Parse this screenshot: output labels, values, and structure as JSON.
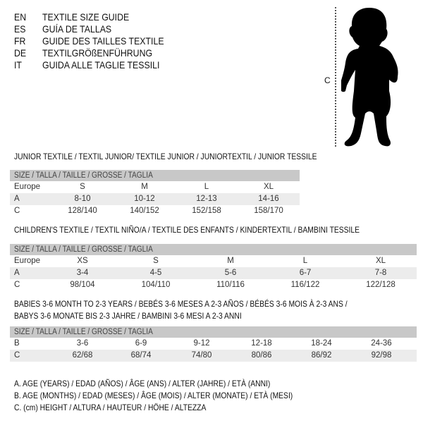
{
  "languages": [
    {
      "code": "EN",
      "text": "TEXTILE SIZE GUIDE"
    },
    {
      "code": "ES",
      "text": "GUÍA DE TALLAS"
    },
    {
      "code": "FR",
      "text": "GUIDE DES TAILLES TEXTILE"
    },
    {
      "code": "DE",
      "text": "TEXTILGRÖßENFÜHRUNG"
    },
    {
      "code": "IT",
      "text": "GUIDA ALLE TAGLIE TESSILI"
    }
  ],
  "figure": {
    "label": "C"
  },
  "tables": [
    {
      "title": [
        "JUNIOR TEXTILE / TEXTIL JUNIOR/ TEXTILE JUNIOR / JUNIORTEXTIL / JUNIOR TESSILE"
      ],
      "header": "SIZE / TALLA / TAILLE / GRÖSSE / TAGLIA",
      "rows": [
        {
          "label": "Europe",
          "cells": [
            "S",
            "M",
            "L",
            "XL"
          ]
        },
        {
          "label": "A",
          "cells": [
            "8-10",
            "10-12",
            "12-13",
            "14-16"
          ]
        },
        {
          "label": "C",
          "cells": [
            "128/140",
            "140/152",
            "152/158",
            "158/170"
          ]
        }
      ]
    },
    {
      "title": [
        "CHILDREN'S TEXTILE / TEXTIL NIÑO/A / TEXTILE DES ENFANTS / KINDERTEXTIL / BAMBINI TESSILE"
      ],
      "header": "SIZE / TALLA / TAILLE / GRÖSSE / TAGLIA",
      "rows": [
        {
          "label": "Europe",
          "cells": [
            "XS",
            "S",
            "M",
            "L",
            "XL"
          ]
        },
        {
          "label": "A",
          "cells": [
            "3-4",
            "4-5",
            "5-6",
            "6-7",
            "7-8"
          ]
        },
        {
          "label": "C",
          "cells": [
            "98/104",
            "104/110",
            "110/116",
            "116/122",
            "122/128"
          ]
        }
      ]
    },
    {
      "title": [
        "BABIES 3-6 MONTH TO 2-3 YEARS / BEBÉS 3-6 MESES A 2-3 AÑOS / BÉBÉS 3-6 MOIS À 2-3 ANS /",
        "BABYS 3-6 MONATE BIS 2-3 JAHRE / BAMBINI 3-6 MESI A 2-3 ANNI"
      ],
      "header": "SIZE / TALLA / TAILLE / GRÖSSE / TAGLIA",
      "rows": [
        {
          "label": "B",
          "cells": [
            "3-6",
            "6-9",
            "9-12",
            "12-18",
            "18-24",
            "24-36"
          ]
        },
        {
          "label": "C",
          "cells": [
            "62/68",
            "68/74",
            "74/80",
            "80/86",
            "86/92",
            "92/98"
          ]
        }
      ]
    }
  ],
  "legend": [
    "A. AGE (YEARS) / EDAD (AÑOS) / ÂGE (ANS) / ALTER (JAHRE) / ETÀ (ANNI)",
    "B. AGE (MONTHS) / EDAD (MESES) / ÂGE (MOIS) / ALTER (MONATE) / ETÀ (MESI)",
    "C. (cm) HEIGHT / ALTURA / HAUTEUR / HÖHE / ALTEZZA"
  ]
}
